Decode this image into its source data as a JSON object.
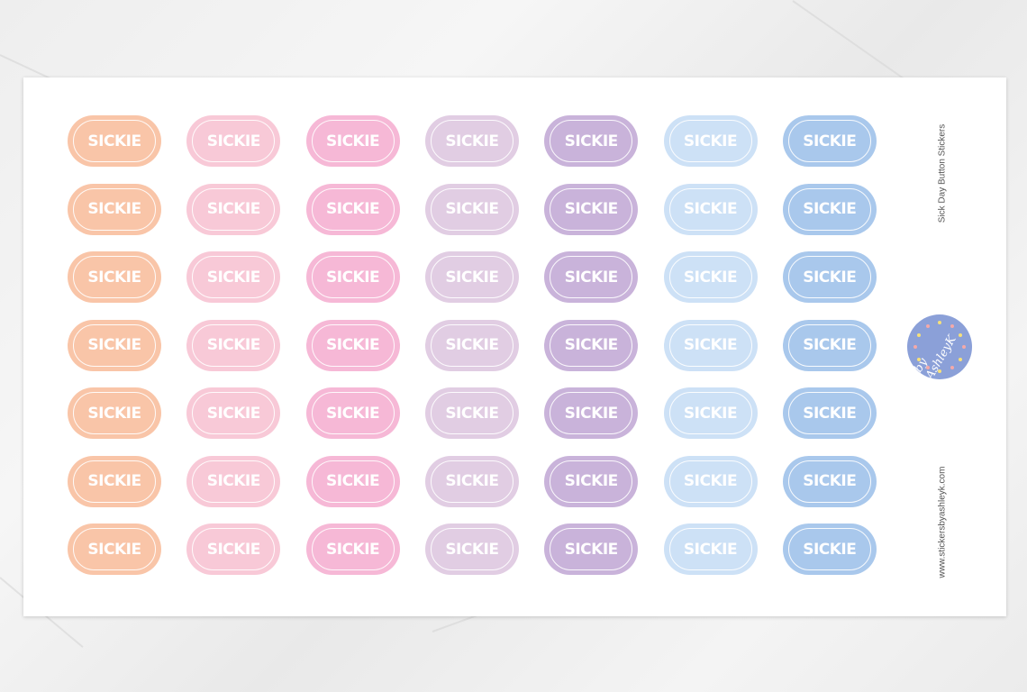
{
  "sheet": {
    "title": "Sick Day Button Stickers",
    "website": "www.stickersbyashleyk.com",
    "logo_text": "by AshleyK"
  },
  "sticker_label": "SICKIE",
  "rows": 7,
  "columns": [
    {
      "color": "#f9c5a8"
    },
    {
      "color": "#f8c9d7"
    },
    {
      "color": "#f6b8d6"
    },
    {
      "color": "#e1cde3"
    },
    {
      "color": "#c9b3da"
    },
    {
      "color": "#cde1f6"
    },
    {
      "color": "#a9c8ec"
    }
  ],
  "colors": {
    "logo": "#8ba0d8",
    "background": "#eeeeee",
    "sheet": "#ffffff"
  }
}
